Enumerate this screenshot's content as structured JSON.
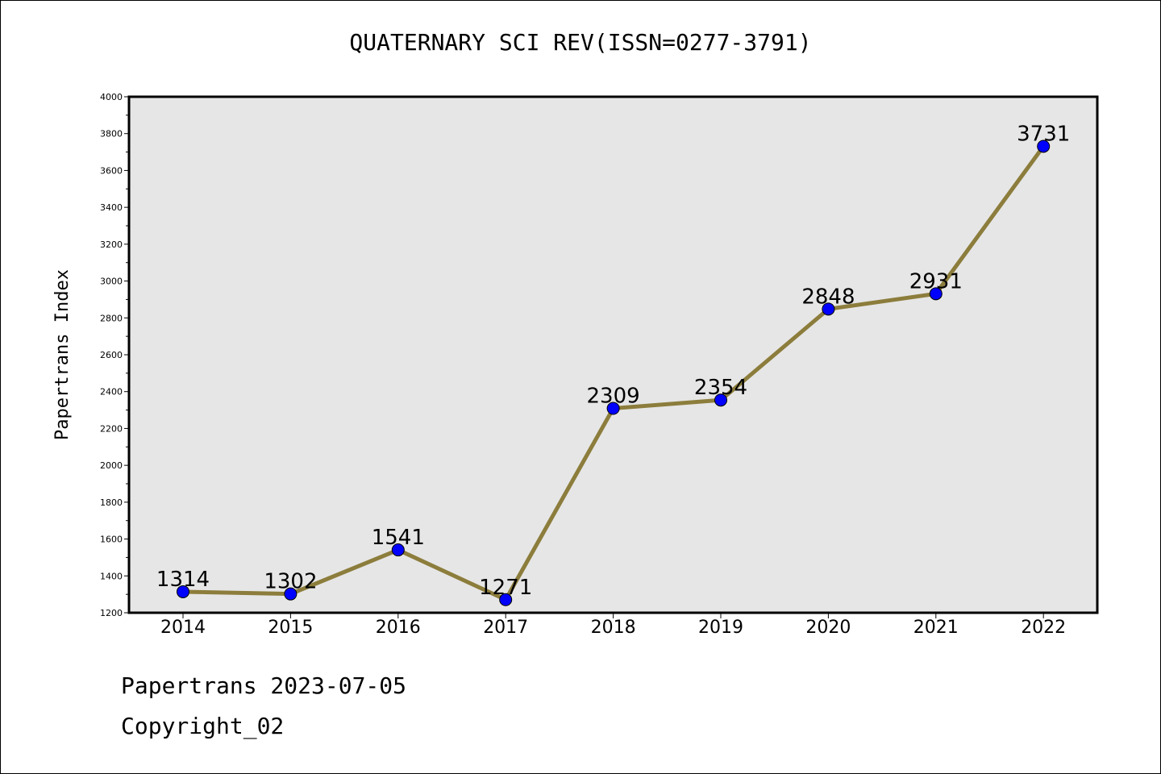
{
  "chart_data": {
    "type": "line",
    "title": "QUATERNARY SCI REV(ISSN=0277-3791)",
    "xlabel": "",
    "ylabel": "Papertrans Index",
    "categories": [
      "2014",
      "2015",
      "2016",
      "2017",
      "2018",
      "2019",
      "2020",
      "2021",
      "2022"
    ],
    "series": [
      {
        "values": [
          1314,
          1302,
          1541,
          1271,
          2309,
          2354,
          2848,
          2931,
          3731
        ]
      }
    ],
    "ylim": [
      1200,
      4000
    ],
    "yticks": [
      1200,
      1400,
      1600,
      1800,
      2000,
      2200,
      2400,
      2600,
      2800,
      3000,
      3200,
      3400,
      3600,
      3800,
      4000
    ],
    "data_labels": true,
    "grid": false,
    "colors": {
      "line": "#8c7d3c",
      "marker": "#0000ff",
      "plot_bg": "#e6e6e6"
    }
  },
  "footer": {
    "line1": "Papertrans 2023-07-05",
    "line2": "Copyright_02"
  }
}
